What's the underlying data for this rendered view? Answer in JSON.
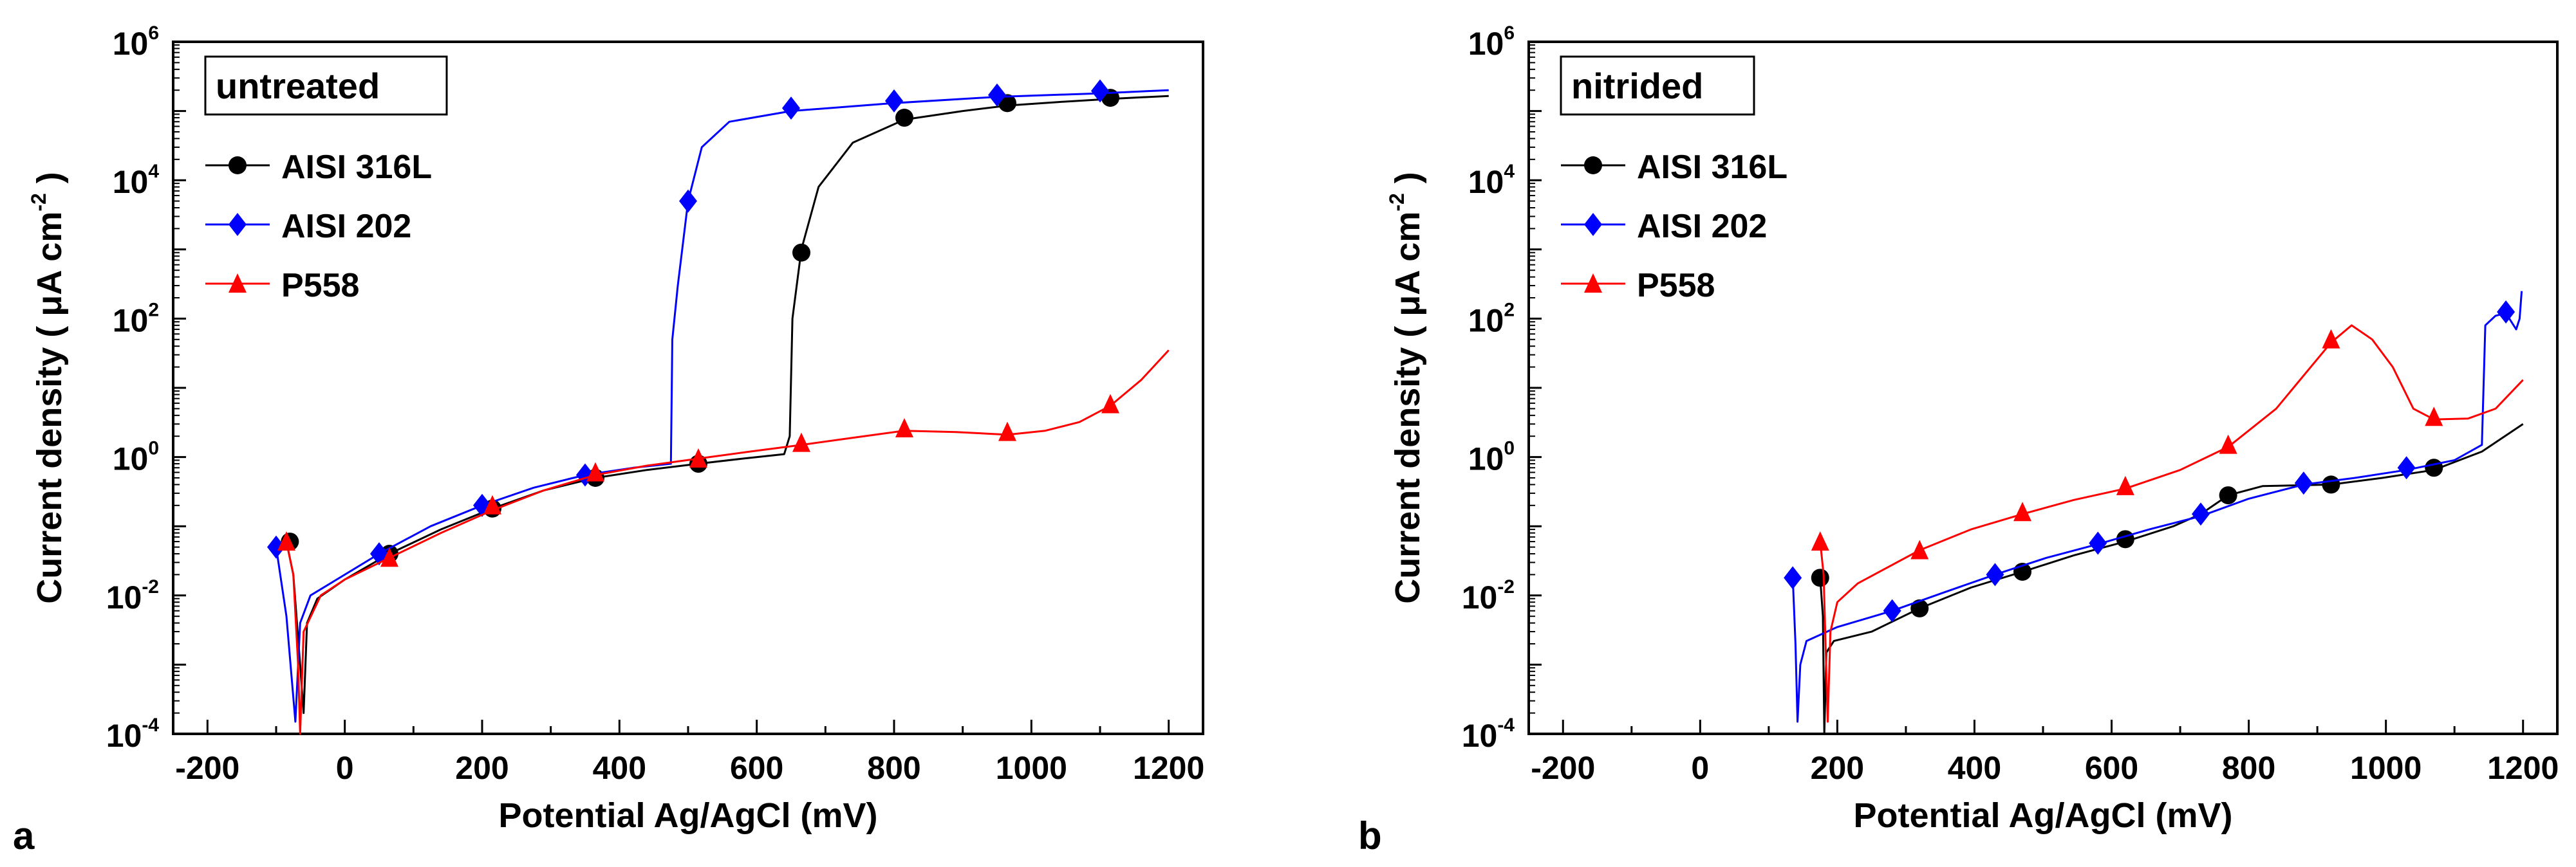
{
  "chart_data": [
    {
      "type": "line",
      "panel_label": "a",
      "title": "untreated",
      "xlabel": "Potential Ag/AgCl (mV)",
      "ylabel": "Current density ( μA cm",
      "ylabel_sup": "-2",
      "ylabel_end": " )",
      "xlim": [
        -250,
        1250
      ],
      "ylim": [
        0.0001,
        1000000
      ],
      "yscale": "log",
      "xticks": [
        -200,
        0,
        200,
        400,
        600,
        800,
        1000,
        1200
      ],
      "yticks": [
        {
          "base": "10",
          "exp": "-4",
          "v": 0.0001
        },
        {
          "base": "10",
          "exp": "-2",
          "v": 0.01
        },
        {
          "base": "10",
          "exp": "0",
          "v": 1
        },
        {
          "base": "10",
          "exp": "2",
          "v": 100
        },
        {
          "base": "10",
          "exp": "4",
          "v": 10000
        },
        {
          "base": "10",
          "exp": "6",
          "v": 1000000
        }
      ],
      "legend_position": "top-left",
      "series": [
        {
          "name": "AISI 316L",
          "color": "#000000",
          "marker": "circle",
          "points": [
            [
              -85,
              0.06
            ],
            [
              -75,
              0.02
            ],
            [
              -65,
              0.001
            ],
            [
              -60,
              0.0002
            ],
            [
              -55,
              0.004
            ],
            [
              -40,
              0.009
            ],
            [
              0,
              0.017
            ],
            [
              65,
              0.04
            ],
            [
              140,
              0.09
            ],
            [
              215,
              0.18
            ],
            [
              290,
              0.33
            ],
            [
              365,
              0.5
            ],
            [
              440,
              0.65
            ],
            [
              515,
              0.8
            ],
            [
              580,
              0.95
            ],
            [
              640,
              1.1
            ],
            [
              648,
              2
            ],
            [
              652,
              100
            ],
            [
              665,
              1000
            ],
            [
              690,
              8000
            ],
            [
              740,
              35000
            ],
            [
              815,
              75000
            ],
            [
              900,
              100000
            ],
            [
              965,
              120000
            ],
            [
              1040,
              135000
            ],
            [
              1115,
              150000
            ],
            [
              1200,
              165000
            ]
          ],
          "markers": [
            [
              -80,
              0.06
            ],
            [
              65,
              0.04
            ],
            [
              215,
              0.18
            ],
            [
              365,
              0.5
            ],
            [
              515,
              0.8
            ],
            [
              665,
              900
            ],
            [
              815,
              80000
            ],
            [
              965,
              130000
            ],
            [
              1115,
              155000
            ]
          ]
        },
        {
          "name": "AISI 202",
          "color": "#0000ff",
          "marker": "diamond",
          "points": [
            [
              -100,
              0.05
            ],
            [
              -85,
              0.005
            ],
            [
              -72,
              0.00015
            ],
            [
              -65,
              0.004
            ],
            [
              -50,
              0.01
            ],
            [
              0,
              0.02
            ],
            [
              50,
              0.04
            ],
            [
              125,
              0.1
            ],
            [
              200,
              0.2
            ],
            [
              275,
              0.36
            ],
            [
              350,
              0.55
            ],
            [
              420,
              0.7
            ],
            [
              475,
              0.8
            ],
            [
              477,
              50
            ],
            [
              485,
              300
            ],
            [
              500,
              5000
            ],
            [
              520,
              30000
            ],
            [
              560,
              70000
            ],
            [
              650,
              100000
            ],
            [
              800,
              130000
            ],
            [
              950,
              160000
            ],
            [
              1100,
              180000
            ],
            [
              1200,
              200000
            ]
          ],
          "markers": [
            [
              -100,
              0.05
            ],
            [
              50,
              0.04
            ],
            [
              200,
              0.2
            ],
            [
              350,
              0.55
            ],
            [
              500,
              5000
            ],
            [
              650,
              110000
            ],
            [
              800,
              140000
            ],
            [
              950,
              170000
            ],
            [
              1100,
              195000
            ]
          ]
        },
        {
          "name": "P558",
          "color": "#ff0000",
          "marker": "triangle",
          "points": [
            [
              -85,
              0.06
            ],
            [
              -75,
              0.02
            ],
            [
              -68,
              0.001
            ],
            [
              -65,
              0.0001
            ],
            [
              -60,
              0.003
            ],
            [
              -35,
              0.01
            ],
            [
              0,
              0.017
            ],
            [
              65,
              0.035
            ],
            [
              140,
              0.08
            ],
            [
              215,
              0.17
            ],
            [
              290,
              0.33
            ],
            [
              365,
              0.55
            ],
            [
              440,
              0.75
            ],
            [
              515,
              0.95
            ],
            [
              590,
              1.2
            ],
            [
              665,
              1.5
            ],
            [
              740,
              1.9
            ],
            [
              815,
              2.4
            ],
            [
              890,
              2.3
            ],
            [
              965,
              2.1
            ],
            [
              1020,
              2.4
            ],
            [
              1070,
              3.2
            ],
            [
              1115,
              5.5
            ],
            [
              1160,
              13
            ],
            [
              1200,
              35
            ]
          ],
          "markers": [
            [
              -85,
              0.06
            ],
            [
              65,
              0.035
            ],
            [
              215,
              0.2
            ],
            [
              365,
              0.6
            ],
            [
              515,
              0.95
            ],
            [
              665,
              1.6
            ],
            [
              815,
              2.6
            ],
            [
              965,
              2.3
            ],
            [
              1115,
              5.8
            ]
          ]
        }
      ]
    },
    {
      "type": "line",
      "panel_label": "b",
      "title": "nitrided",
      "xlabel": "Potential Ag/AgCl (mV)",
      "ylabel": "Current density ( μA cm",
      "ylabel_sup": "-2",
      "ylabel_end": " )",
      "xlim": [
        -250,
        1250
      ],
      "ylim": [
        0.0001,
        1000000
      ],
      "yscale": "log",
      "xticks": [
        -200,
        0,
        200,
        400,
        600,
        800,
        1000,
        1200
      ],
      "yticks": [
        {
          "base": "10",
          "exp": "-4",
          "v": 0.0001
        },
        {
          "base": "10",
          "exp": "-2",
          "v": 0.01
        },
        {
          "base": "10",
          "exp": "0",
          "v": 1
        },
        {
          "base": "10",
          "exp": "2",
          "v": 100
        },
        {
          "base": "10",
          "exp": "4",
          "v": 10000
        },
        {
          "base": "10",
          "exp": "6",
          "v": 1000000
        }
      ],
      "legend_position": "top-left",
      "series": [
        {
          "name": "AISI 316L",
          "color": "#000000",
          "marker": "circle",
          "points": [
            [
              175,
              0.018
            ],
            [
              179,
              0.005
            ],
            [
              181,
              0.0001
            ],
            [
              184,
              0.0015
            ],
            [
              195,
              0.0022
            ],
            [
              250,
              0.003
            ],
            [
              320,
              0.0065
            ],
            [
              395,
              0.013
            ],
            [
              470,
              0.022
            ],
            [
              545,
              0.038
            ],
            [
              620,
              0.06
            ],
            [
              690,
              0.1
            ],
            [
              730,
              0.15
            ],
            [
              770,
              0.28
            ],
            [
              820,
              0.38
            ],
            [
              870,
              0.39
            ],
            [
              920,
              0.4
            ],
            [
              995,
              0.5
            ],
            [
              1070,
              0.65
            ],
            [
              1140,
              1.2
            ],
            [
              1200,
              3
            ]
          ],
          "markers": [
            [
              175,
              0.018
            ],
            [
              320,
              0.0065
            ],
            [
              470,
              0.022
            ],
            [
              620,
              0.065
            ],
            [
              770,
              0.28
            ],
            [
              920,
              0.4
            ],
            [
              1070,
              0.7
            ]
          ]
        },
        {
          "name": "AISI 202",
          "color": "#0000ff",
          "marker": "diamond",
          "points": [
            [
              135,
              0.018
            ],
            [
              139,
              0.002
            ],
            [
              142,
              0.00015
            ],
            [
              146,
              0.001
            ],
            [
              155,
              0.0022
            ],
            [
              200,
              0.0035
            ],
            [
              280,
              0.006
            ],
            [
              355,
              0.011
            ],
            [
              430,
              0.02
            ],
            [
              505,
              0.035
            ],
            [
              580,
              0.055
            ],
            [
              655,
              0.09
            ],
            [
              730,
              0.14
            ],
            [
              800,
              0.25
            ],
            [
              880,
              0.4
            ],
            [
              955,
              0.5
            ],
            [
              1030,
              0.65
            ],
            [
              1100,
              0.9
            ],
            [
              1140,
              1.5
            ],
            [
              1145,
              80
            ],
            [
              1160,
              110
            ],
            [
              1175,
              120
            ],
            [
              1190,
              70
            ],
            [
              1195,
              100
            ],
            [
              1198,
              250
            ]
          ],
          "markers": [
            [
              135,
              0.018
            ],
            [
              280,
              0.006
            ],
            [
              430,
              0.02
            ],
            [
              580,
              0.057
            ],
            [
              730,
              0.15
            ],
            [
              880,
              0.42
            ],
            [
              1030,
              0.7
            ],
            [
              1175,
              125
            ]
          ]
        },
        {
          "name": "P558",
          "color": "#ff0000",
          "marker": "triangle",
          "points": [
            [
              175,
              0.06
            ],
            [
              180,
              0.02
            ],
            [
              186,
              0.00015
            ],
            [
              190,
              0.003
            ],
            [
              200,
              0.008
            ],
            [
              230,
              0.015
            ],
            [
              320,
              0.045
            ],
            [
              395,
              0.09
            ],
            [
              470,
              0.15
            ],
            [
              545,
              0.24
            ],
            [
              620,
              0.35
            ],
            [
              700,
              0.65
            ],
            [
              770,
              1.4
            ],
            [
              840,
              5
            ],
            [
              920,
              45
            ],
            [
              950,
              80
            ],
            [
              980,
              50
            ],
            [
              1010,
              20
            ],
            [
              1040,
              5
            ],
            [
              1070,
              3.5
            ],
            [
              1120,
              3.6
            ],
            [
              1160,
              5
            ],
            [
              1200,
              13
            ]
          ],
          "markers": [
            [
              175,
              0.06
            ],
            [
              320,
              0.045
            ],
            [
              470,
              0.16
            ],
            [
              620,
              0.38
            ],
            [
              770,
              1.5
            ],
            [
              920,
              50
            ],
            [
              1070,
              3.8
            ]
          ]
        }
      ]
    }
  ]
}
